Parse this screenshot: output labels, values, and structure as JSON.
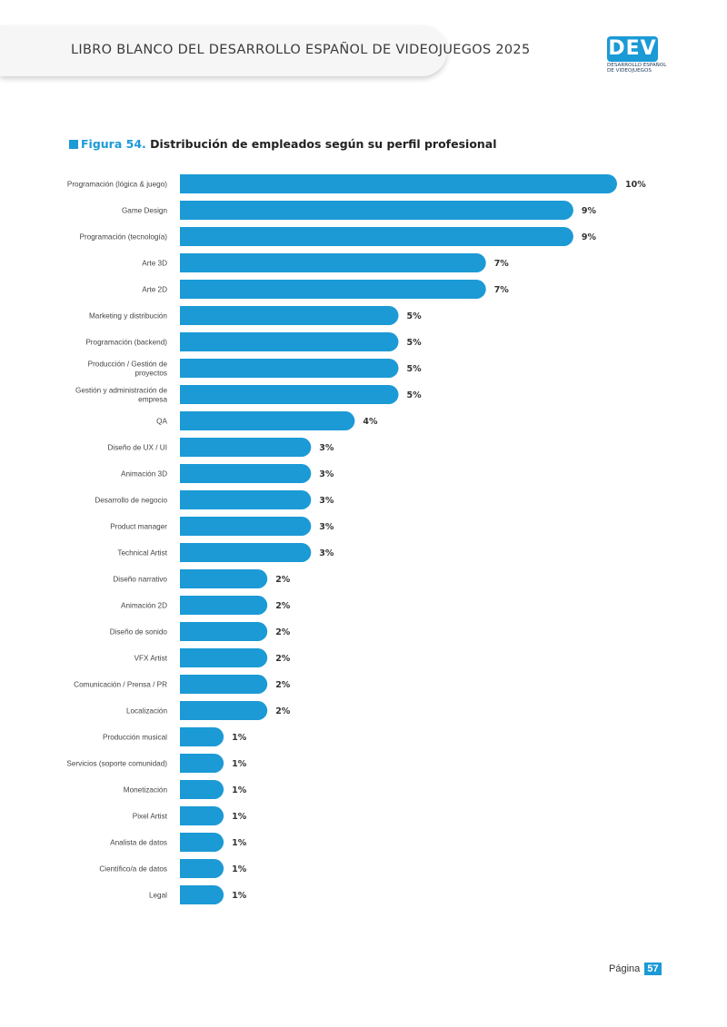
{
  "header": {
    "title": "LIBRO BLANCO DEL DESARROLLO ESPAÑOL DE VIDEOJUEGOS 2025"
  },
  "logo": {
    "mark": "DEV",
    "line1": "DESARROLLO ESPAÑOL",
    "line2": "DE VIDEOJUEGOS"
  },
  "figure": {
    "label": "Figura 54.",
    "title": "Distribución de empleados según su perfil profesional"
  },
  "footer": {
    "page_label": "Página",
    "page_number": "57"
  },
  "colors": {
    "bar": "#1b9ad6",
    "accent": "#1b9ad6"
  },
  "chart_data": {
    "type": "bar",
    "orientation": "horizontal",
    "categories": [
      "Programación (lógica & juego)",
      "Game Design",
      "Programación (tecnología)",
      "Arte 3D",
      "Arte 2D",
      "Marketing y distribución",
      "Programación (backend)",
      "Producción / Gestión de proyectos",
      "Gestión y administración de empresa",
      "QA",
      "Diseño de UX / UI",
      "Animación 3D",
      "Desarrollo de negocio",
      "Product manager",
      "Technical Artist",
      "Diseño narrativo",
      "Animación 2D",
      "Diseño de sonido",
      "VFX Artist",
      "Comunicación / Prensa / PR",
      "Localización",
      "Producción musical",
      "Servicios (soporte comunidad)",
      "Monetización",
      "Pixel Artist",
      "Analista de datos",
      "Científico/a de datos",
      "Legal"
    ],
    "values": [
      10,
      9,
      9,
      7,
      7,
      5,
      5,
      5,
      5,
      4,
      3,
      3,
      3,
      3,
      3,
      2,
      2,
      2,
      2,
      2,
      2,
      1,
      1,
      1,
      1,
      1,
      1,
      1
    ],
    "value_labels": [
      "10%",
      "9%",
      "9%",
      "7%",
      "7%",
      "5%",
      "5%",
      "5%",
      "5%",
      "4%",
      "3%",
      "3%",
      "3%",
      "3%",
      "3%",
      "2%",
      "2%",
      "2%",
      "2%",
      "2%",
      "2%",
      "1%",
      "1%",
      "1%",
      "1%",
      "1%",
      "1%",
      "1%"
    ],
    "category_lines": [
      [
        "Programación (lógica & juego)"
      ],
      [
        "Game Design"
      ],
      [
        "Programación (tecnología)"
      ],
      [
        "Arte 3D"
      ],
      [
        "Arte 2D"
      ],
      [
        "Marketing y distribución"
      ],
      [
        "Programación (backend)"
      ],
      [
        "Producción / Gestión de",
        "proyectos"
      ],
      [
        "Gestión y administración de",
        "empresa"
      ],
      [
        "QA"
      ],
      [
        "Diseño de UX / UI"
      ],
      [
        "Animación 3D"
      ],
      [
        "Desarrollo de negocio"
      ],
      [
        "Product manager"
      ],
      [
        "Technical Artist"
      ],
      [
        "Diseño narrativo"
      ],
      [
        "Animación 2D"
      ],
      [
        "Diseño de sonido"
      ],
      [
        "VFX Artist"
      ],
      [
        "Comunicación / Prensa / PR"
      ],
      [
        "Localización"
      ],
      [
        "Producción musical"
      ],
      [
        "Servicios (soporte comunidad)"
      ],
      [
        "Monetización"
      ],
      [
        "Pixel Artist"
      ],
      [
        "Analista de datos"
      ],
      [
        "Científico/a de datos"
      ],
      [
        "Legal"
      ]
    ],
    "grid": false,
    "legend": "none"
  }
}
